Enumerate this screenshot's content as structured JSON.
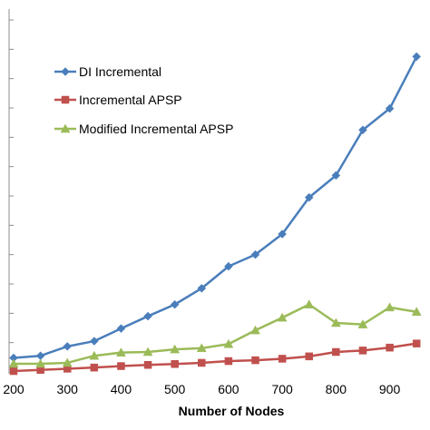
{
  "chart_data": {
    "type": "line",
    "title": "",
    "xlabel": "Number of Nodes",
    "ylabel": "",
    "xlim": [
      200,
      950
    ],
    "ylim": [
      0,
      12
    ],
    "x_ticks": [
      "200",
      "300",
      "400",
      "500",
      "600",
      "700",
      "800",
      "900"
    ],
    "x_tick_values": [
      200,
      300,
      400,
      500,
      600,
      700,
      800,
      900
    ],
    "y_tick_values": [
      1,
      2,
      3,
      4,
      5,
      6,
      7,
      8,
      9,
      10,
      11,
      12
    ],
    "legend_position": "upper-left",
    "x": [
      200,
      250,
      300,
      350,
      400,
      450,
      500,
      550,
      600,
      650,
      700,
      750,
      800,
      850,
      900,
      950
    ],
    "series": [
      {
        "name": "DI Incremental",
        "color": "#4a7ebb",
        "marker": "diamond",
        "values": [
          0.48,
          0.55,
          0.87,
          1.05,
          1.48,
          1.9,
          2.3,
          2.85,
          3.6,
          4.0,
          4.7,
          5.95,
          6.7,
          8.25,
          8.98,
          10.75
        ]
      },
      {
        "name": "Incremental APSP",
        "color": "#c0504d",
        "marker": "square",
        "values": [
          0.03,
          0.07,
          0.11,
          0.15,
          0.2,
          0.24,
          0.27,
          0.31,
          0.37,
          0.4,
          0.45,
          0.53,
          0.68,
          0.73,
          0.83,
          0.97
        ]
      },
      {
        "name": "Modified Incremental APSP",
        "color": "#9bbb59",
        "marker": "triangle",
        "values": [
          0.28,
          0.28,
          0.31,
          0.55,
          0.66,
          0.68,
          0.77,
          0.81,
          0.95,
          1.42,
          1.85,
          2.3,
          1.67,
          1.62,
          2.2,
          2.05
        ]
      }
    ]
  }
}
